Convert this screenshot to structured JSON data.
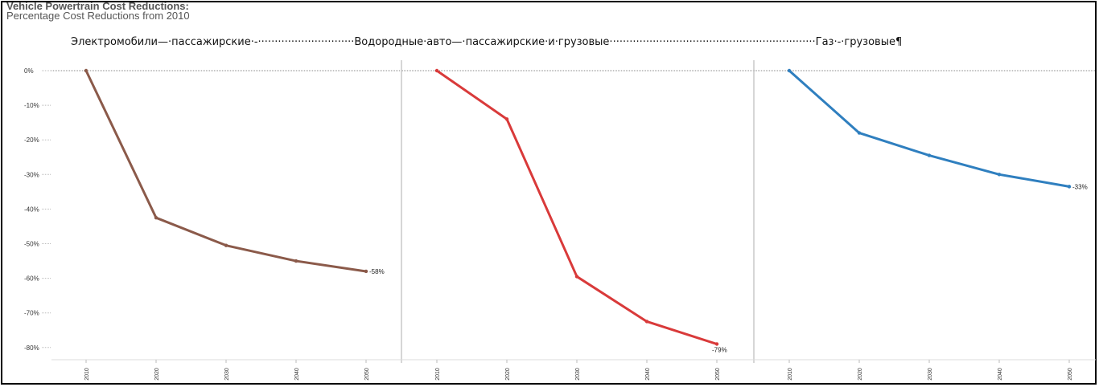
{
  "header": {
    "title": "Vehicle Powertrain Cost Reductions:",
    "subtitle": "Percentage Cost Reductions from 2010"
  },
  "panel_header_text": "Электромобили—·пассажирские·-·····························Водородные·авто—·пассажирские·и·грузовые······························································Газ·-·грузовые¶",
  "colors": {
    "electric": "#8B5A4A",
    "hydrogen": "#D93A3A",
    "gas": "#2F7FBF",
    "grid_zero": "#888888",
    "divider": "#c8c8c8"
  },
  "chart_data": {
    "type": "line",
    "title": "Vehicle Powertrain Cost Reductions:",
    "subtitle": "Percentage Cost Reductions from 2010",
    "x": [
      2010,
      2020,
      2030,
      2040,
      2050
    ],
    "ylim": [
      -85,
      0
    ],
    "yticks": [
      "0%",
      "-10%",
      "-20%",
      "-30%",
      "-40%",
      "-50%",
      "-60%",
      "-70%",
      "-80%"
    ],
    "ytick_values": [
      0,
      -10,
      -20,
      -30,
      -40,
      -50,
      -60,
      -70,
      -80
    ],
    "xticks": [
      "2010",
      "2020",
      "2030",
      "2040",
      "2050"
    ],
    "grid": false,
    "panels": [
      {
        "key": "electric",
        "values": [
          0,
          -42.5,
          -50.5,
          -55,
          -58
        ],
        "end_label": "-58%"
      },
      {
        "key": "hydrogen",
        "values": [
          0,
          -14,
          -59.5,
          -72.5,
          -79
        ],
        "end_label": "-79%"
      },
      {
        "key": "gas",
        "values": [
          0,
          -18,
          -24.5,
          -30,
          -33.5
        ],
        "end_label": "-33%"
      }
    ]
  }
}
